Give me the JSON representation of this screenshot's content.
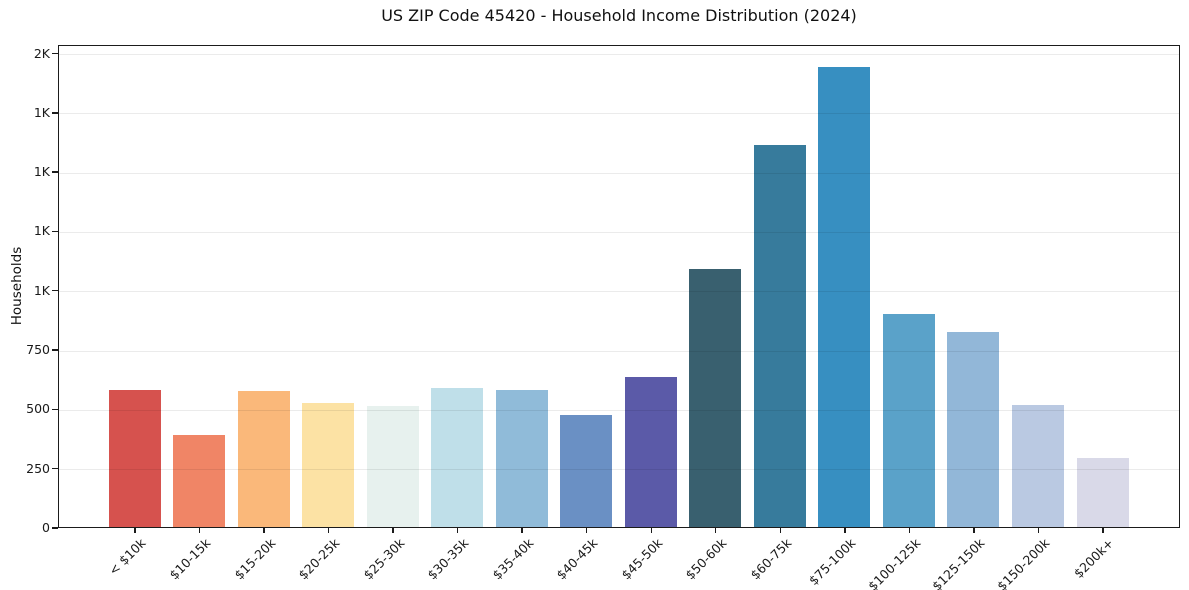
{
  "chart_data": {
    "type": "bar",
    "title": "US ZIP Code 45420 - Household Income Distribution (2024)",
    "xlabel": "",
    "ylabel": "Households",
    "categories": [
      "< $10k",
      "$10-15k",
      "$15-20k",
      "$20-25k",
      "$25-30k",
      "$30-35k",
      "$35-40k",
      "$40-45k",
      "$45-50k",
      "$50-60k",
      "$60-75k",
      "$75-100k",
      "$100-125k",
      "$125-150k",
      "$150-200k",
      "$200k+"
    ],
    "values": [
      578,
      386,
      573,
      523,
      509,
      587,
      578,
      473,
      631,
      1089,
      1612,
      1941,
      896,
      821,
      514,
      292
    ],
    "bar_colors": [
      "#d6524e",
      "#f08566",
      "#fab87a",
      "#fce2a4",
      "#e7f1ee",
      "#bfdfe9",
      "#90bbd9",
      "#6a90c4",
      "#5b5aa8",
      "#39606f",
      "#377b9c",
      "#378fc1",
      "#5aa2c9",
      "#92b7d8",
      "#bac9e2",
      "#d9d9e8"
    ],
    "ylim": [
      0,
      2036
    ],
    "yticks": [
      {
        "value": 0,
        "label": "0"
      },
      {
        "value": 250,
        "label": "250"
      },
      {
        "value": 500,
        "label": "500"
      },
      {
        "value": 750,
        "label": "750"
      },
      {
        "value": 1000,
        "label": "1K"
      },
      {
        "value": 1250,
        "label": "1K"
      },
      {
        "value": 1500,
        "label": "1K"
      },
      {
        "value": 1750,
        "label": "1K"
      },
      {
        "value": 2000,
        "label": "2K"
      }
    ],
    "grid": "horizontal",
    "legend": "none",
    "spine_color": "#1b1b1b",
    "gridline_color": "#ebebeb"
  }
}
